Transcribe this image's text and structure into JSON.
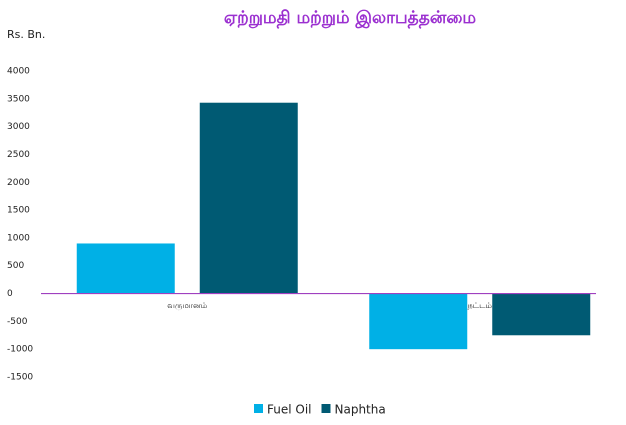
{
  "chart_data": {
    "type": "bar",
    "title": "ஏற்றுமதி மற்றும் இலாபத்தன்மை",
    "y_label": "Rs. Bn.",
    "categories": [
      "வருமானம்",
      "நட்டம்"
    ],
    "series": [
      {
        "name": "Fuel Oil",
        "color": "#00b0e6",
        "values": [
          900,
          -1000
        ]
      },
      {
        "name": "Naphtha",
        "color": "#005a73",
        "values": [
          3430,
          -750
        ]
      }
    ],
    "ylim": [
      -1500,
      4000
    ],
    "yticks": [
      -1500,
      -1000,
      -500,
      0,
      500,
      1000,
      1500,
      2000,
      2500,
      3000,
      3500,
      4000
    ],
    "grid": false,
    "legend": "bottom",
    "zero_line_color": "#a040c0"
  }
}
